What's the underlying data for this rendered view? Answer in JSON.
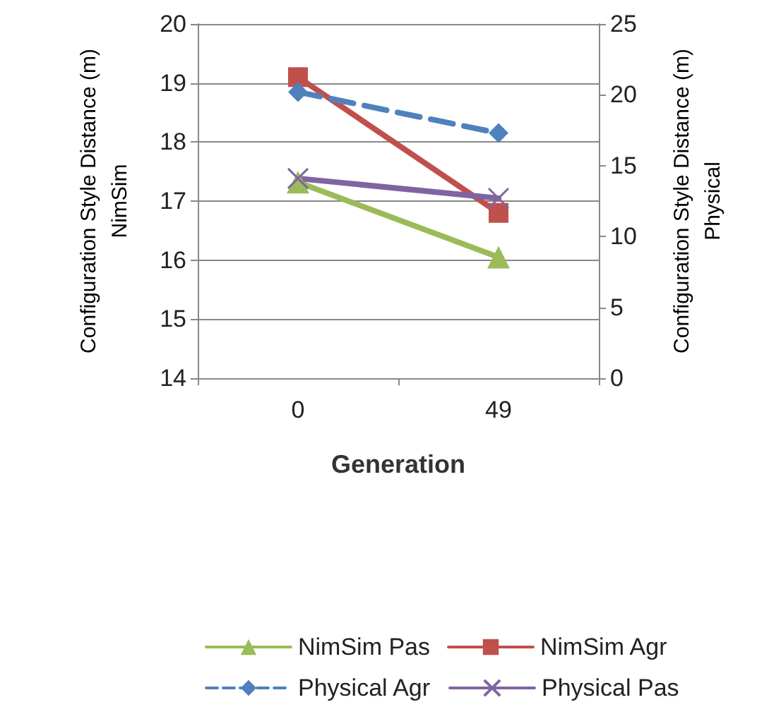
{
  "chart_data": {
    "type": "line",
    "xlabel": "Generation",
    "ylabel": "Configuration Style Distance (m)\nNimSim",
    "y2label": "Configuration Style Distance (m)\nPhysical",
    "categories": [
      "0",
      "49"
    ],
    "series": [
      {
        "name": "NimSim Pas",
        "color": "#9bbb59",
        "values": [
          17.32,
          16.05
        ],
        "marker": "triangle",
        "line_style": "solid"
      },
      {
        "name": "NimSim Agr",
        "color": "#c0504d",
        "values": [
          19.1,
          16.8
        ],
        "marker": "square",
        "line_style": "solid"
      },
      {
        "name": "Physical Agr",
        "color": "#4f81bd",
        "values": [
          20.2,
          17.3
        ],
        "marker": "diamond",
        "line_style": "dashed",
        "axis": "y2"
      },
      {
        "name": "Physical Pas",
        "color": "#8064a2",
        "values": [
          14.1,
          12.7
        ],
        "marker": "cross",
        "line_style": "solid",
        "axis": "y2"
      }
    ],
    "ylim": [
      14,
      20
    ],
    "yticks": [
      14,
      15,
      16,
      17,
      18,
      19,
      20
    ],
    "y2lim": [
      0,
      25
    ],
    "y2ticks": [
      0,
      5,
      10,
      15,
      20,
      25
    ],
    "grid": "y",
    "legend": "bottom"
  }
}
